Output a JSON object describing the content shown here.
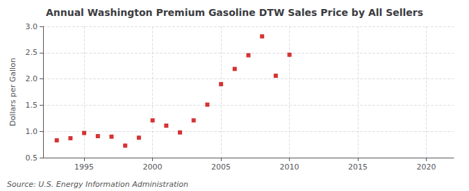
{
  "chart_data": {
    "type": "scatter",
    "title": "Annual Washington Premium Gasoline DTW Sales Price by All Sellers",
    "ylabel": "Dollars per Gallon",
    "annotations": [
      "Source: U.S. Energy Information Administration"
    ],
    "x": [
      1993,
      1994,
      1995,
      1996,
      1997,
      1998,
      1999,
      2000,
      2001,
      2002,
      2003,
      2004,
      2005,
      2006,
      2007,
      2008,
      2009,
      2010
    ],
    "values": [
      0.83,
      0.87,
      0.97,
      0.91,
      0.9,
      0.73,
      0.88,
      1.21,
      1.11,
      0.98,
      1.21,
      1.51,
      1.9,
      2.19,
      2.45,
      2.81,
      2.06,
      2.46
    ],
    "color": "#cc0000",
    "marker": "square",
    "xlim": [
      1992,
      2022
    ],
    "xticks": [
      1995,
      2000,
      2005,
      2010,
      2015,
      2020
    ],
    "ylim": [
      0.5,
      3.0
    ],
    "yticks": [
      0.5,
      {
        "value": 1.0,
        "label": "1.0"
      },
      1.5,
      {
        "value": 2.0,
        "label": "2.0"
      },
      2.5,
      {
        "value": 3.0,
        "label": "3.0"
      }
    ],
    "grid": true
  }
}
